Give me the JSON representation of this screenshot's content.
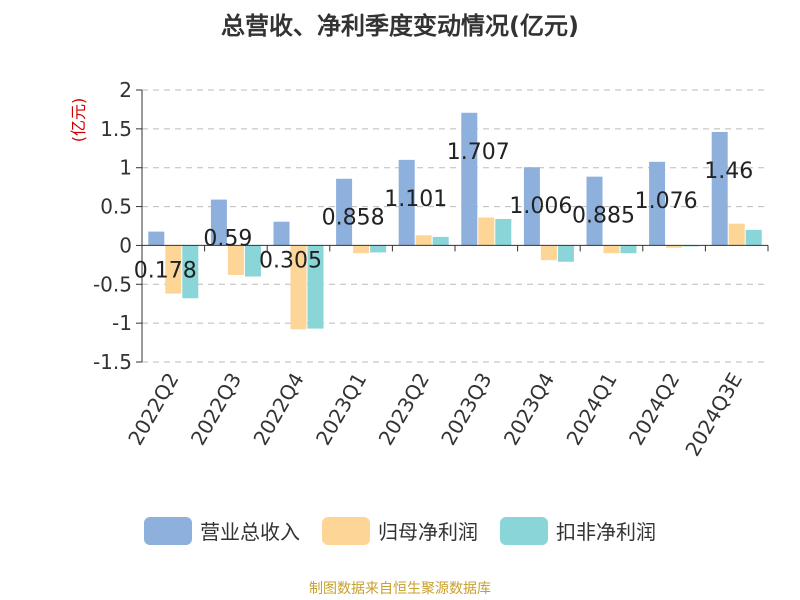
{
  "chart_data": {
    "type": "bar",
    "title": "总营收、净利季度变动情况(亿元)",
    "ylabel": "(亿元)",
    "ylim": [
      -1.5,
      2
    ],
    "yticks": [
      "2",
      "1.5",
      "1",
      "0.5",
      "0",
      "-0.5",
      "-1",
      "-1.5"
    ],
    "ytick_values": [
      2,
      1.5,
      1,
      0.5,
      0,
      -0.5,
      -1,
      -1.5
    ],
    "grid": true,
    "legend_position": "bottom",
    "categories": [
      "2022Q2",
      "2022Q3",
      "2022Q4",
      "2023Q1",
      "2023Q2",
      "2023Q3",
      "2023Q4",
      "2024Q1",
      "2024Q2",
      "2024Q3E"
    ],
    "series": [
      {
        "name": "营业总收入",
        "color": "#8eb0dc",
        "values": [
          0.178,
          0.59,
          0.305,
          0.858,
          1.101,
          1.707,
          1.006,
          0.885,
          1.076,
          1.46
        ]
      },
      {
        "name": "归母净利润",
        "color": "#fdd596",
        "values": [
          -0.62,
          -0.38,
          -1.08,
          -0.1,
          0.13,
          0.36,
          -0.19,
          -0.1,
          -0.03,
          0.28
        ]
      },
      {
        "name": "扣非净利润",
        "color": "#89d5d8",
        "values": [
          -0.68,
          -0.4,
          -1.07,
          -0.09,
          0.11,
          0.34,
          -0.21,
          -0.1,
          -0.01,
          0.2
        ]
      }
    ],
    "data_labels": [
      "0.178",
      "0.59",
      "0.305",
      "0.858",
      "1.101",
      "1.707",
      "1.006",
      "0.885",
      "1.076",
      "1.46"
    ]
  },
  "source": "制图数据来自恒生聚源数据库"
}
